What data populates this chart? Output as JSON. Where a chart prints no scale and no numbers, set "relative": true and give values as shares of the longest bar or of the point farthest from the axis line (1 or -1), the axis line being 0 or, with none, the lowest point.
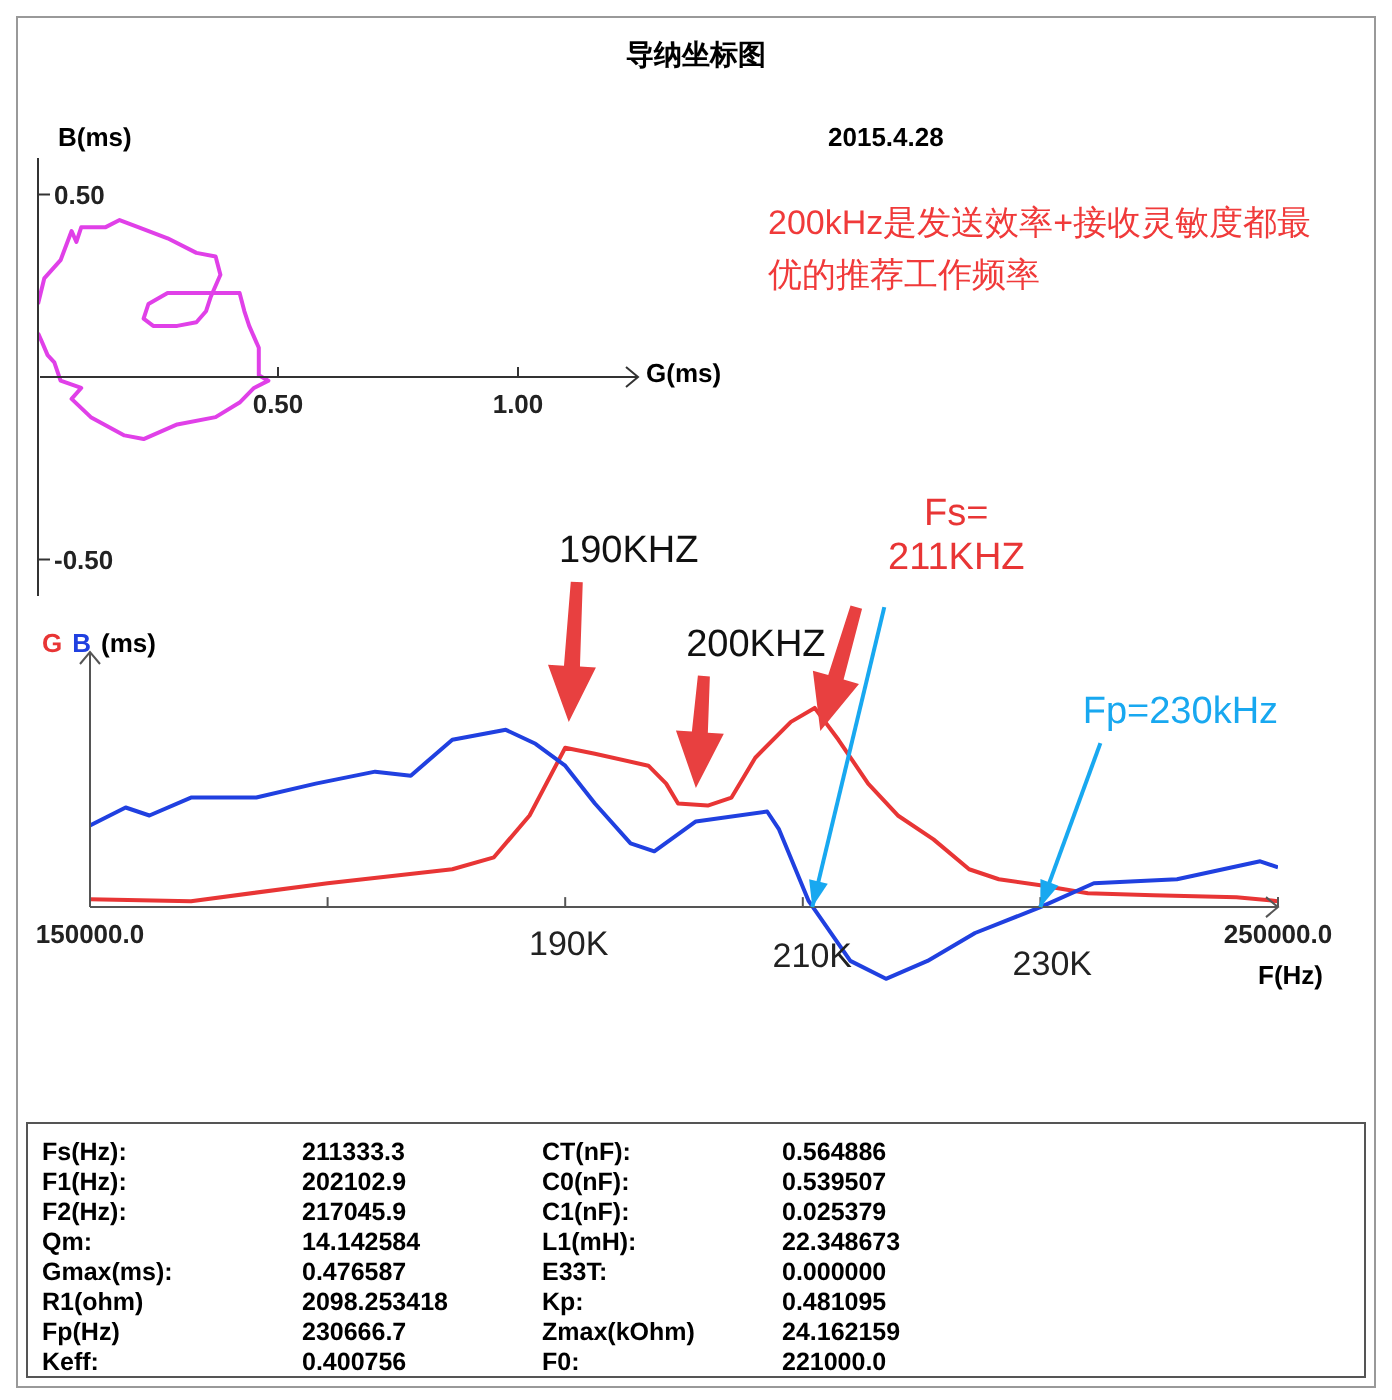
{
  "chart_data": [
    {
      "type": "line",
      "title": "导纳坐标图",
      "xlabel": "G(ms)",
      "ylabel": "B(ms)",
      "marker": "none",
      "xlim": [
        0,
        1.25
      ],
      "ylim": [
        -0.6,
        0.6
      ],
      "xticks": [
        {
          "value": 0.5,
          "label": "0.50"
        },
        {
          "value": 1,
          "label": "1.00"
        }
      ],
      "yticks": [
        {
          "value": 0.5,
          "label": "0.50"
        },
        {
          "value": -0.5,
          "label": "-0.50"
        }
      ],
      "annotations": [
        "2015.4.28",
        "200kHz是发送效率+接收灵敏度都最优的推荐工作频率"
      ],
      "series": [
        {
          "color": "#e040e8",
          "x": [
            0,
            0.013,
            0.047,
            0.07,
            0.08,
            0.09,
            0.14,
            0.17,
            0.21,
            0.27,
            0.33,
            0.37,
            0.38,
            0.36,
            0.35,
            0.33,
            0.29,
            0.24,
            0.22,
            0.23,
            0.27,
            0.37,
            0.42,
            0.43,
            0.44,
            0.46,
            0.46,
            0.48,
            0.45,
            0.42,
            0.37,
            0.29,
            0.22,
            0.18,
            0.11,
            0.07,
            0.09,
            0.047,
            0.034,
            0.02,
            0.007,
            0
          ],
          "values": [
            0.2,
            0.27,
            0.32,
            0.4,
            0.37,
            0.41,
            0.41,
            0.43,
            0.41,
            0.38,
            0.34,
            0.33,
            0.28,
            0.22,
            0.18,
            0.15,
            0.14,
            0.14,
            0.16,
            0.2,
            0.23,
            0.23,
            0.23,
            0.18,
            0.14,
            0.08,
            0.005,
            -0.01,
            -0.03,
            -0.07,
            -0.11,
            -0.13,
            -0.17,
            -0.16,
            -0.11,
            -0.06,
            -0.03,
            -0.01,
            0.04,
            0.06,
            0.1,
            0.12
          ]
        }
      ]
    },
    {
      "type": "line",
      "relative": true,
      "ylabel": "(ms)",
      "xlabel": "F(Hz)",
      "marker": "none",
      "legend": "top left",
      "xlim": [
        150000,
        250000
      ],
      "xticks": [
        {
          "value": 150000,
          "label": "150000.0"
        },
        {
          "value": 170000,
          "label": null
        },
        {
          "value": 190000,
          "label": null
        },
        {
          "value": 210000,
          "label": null
        },
        {
          "value": 230000,
          "label": null
        },
        {
          "value": 250000,
          "label": "250000.0"
        }
      ],
      "annotations": [
        "190KHZ",
        "200KHZ",
        {
          "text": "Fs=\n211KHZ",
          "x": 210800,
          "y": 0
        },
        {
          "text": "Fp=230kHz",
          "x": 230000,
          "y": 0
        },
        "190K",
        "210K",
        "230K"
      ],
      "series": [
        {
          "name": "G",
          "color": "#e83535",
          "x": [
            150000,
            158500,
            170000,
            180500,
            184000,
            187000,
            190000,
            192500,
            197000,
            198500,
            199500,
            202000,
            204000,
            206000,
            209000,
            211000,
            213000,
            215500,
            218000,
            221000,
            224000,
            226500,
            230000,
            234000,
            239500,
            246500,
            250000
          ],
          "values": [
            0.04,
            0.03,
            0.12,
            0.19,
            0.25,
            0.46,
            0.8,
            0.77,
            0.71,
            0.62,
            0.52,
            0.51,
            0.55,
            0.75,
            0.93,
            1,
            0.84,
            0.62,
            0.46,
            0.34,
            0.19,
            0.14,
            0.11,
            0.07,
            0.06,
            0.05,
            0.03
          ]
        },
        {
          "name": "B",
          "color": "#2040e0",
          "x": [
            150000,
            153000,
            155000,
            158500,
            164000,
            169000,
            174000,
            177000,
            180500,
            185000,
            187500,
            190000,
            192500,
            195500,
            197500,
            201000,
            207000,
            208000,
            210500,
            214000,
            217000,
            220500,
            224500,
            230000,
            234500,
            241500,
            248500,
            250000
          ],
          "values": [
            0.41,
            0.5,
            0.46,
            0.55,
            0.55,
            0.62,
            0.68,
            0.66,
            0.84,
            0.89,
            0.82,
            0.71,
            0.52,
            0.32,
            0.28,
            0.43,
            0.48,
            0.39,
            0.03,
            -0.27,
            -0.36,
            -0.27,
            -0.13,
            0,
            0.12,
            0.14,
            0.23,
            0.2
          ]
        }
      ]
    },
    {
      "type": "other",
      "annotations": [
        "Fs(Hz):",
        "211333.3",
        "CT(nF):",
        "0.564886",
        "F1(Hz):",
        "202102.9",
        "C0(nF):",
        "0.539507",
        "F2(Hz):",
        "217045.9",
        "C1(nF):",
        "0.025379",
        "Qm:",
        "14.142584",
        "L1(mH):",
        "22.348673",
        "Gmax(ms):",
        "0.476587",
        "E33T:",
        "0.000000",
        "R1(ohm)",
        "2098.253418",
        "Kp:",
        "0.481095",
        "Fp(Hz)",
        "230666.7",
        "Zmax(kOhm)",
        "24.162159",
        "Keff:",
        "0.400756",
        "F0:",
        "221000.0"
      ]
    }
  ]
}
